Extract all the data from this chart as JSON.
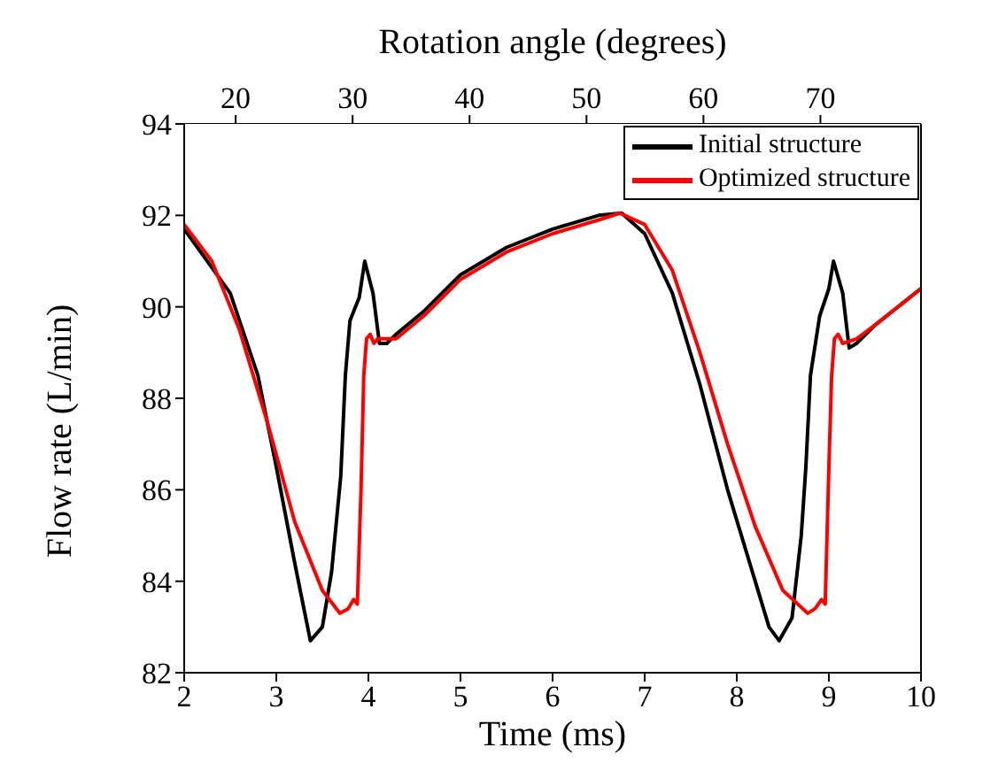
{
  "chart_data": {
    "type": "line",
    "xlabel": "Time (ms)",
    "ylabel": "Flow rate (L/min)",
    "x2label": "Rotation angle (degrees)",
    "xlim": [
      2,
      10
    ],
    "xticks": [
      2,
      3,
      4,
      5,
      6,
      7,
      8,
      9,
      10
    ],
    "ylim": [
      82,
      94
    ],
    "yticks": [
      82,
      84,
      86,
      88,
      90,
      92,
      94
    ],
    "x2lim": [
      15.6,
      78.6
    ],
    "x2ticks": [
      20,
      30,
      40,
      50,
      60,
      70
    ],
    "legend": "top right",
    "line_style": "solid",
    "marker": "none",
    "grid": false,
    "series": [
      {
        "name": "Initial structure",
        "color": "#000000",
        "x": [
          2,
          2.5,
          2.8,
          3.0,
          3.2,
          3.37,
          3.5,
          3.6,
          3.7,
          3.75,
          3.8,
          3.9,
          3.96,
          4.05,
          4.12,
          4.2,
          4.3,
          4.6,
          5,
          5.5,
          6,
          6.5,
          6.75,
          7.0,
          7.3,
          7.6,
          7.9,
          8.2,
          8.35,
          8.46,
          8.6,
          8.7,
          8.75,
          8.8,
          8.9,
          9.0,
          9.05,
          9.15,
          9.22,
          9.3,
          9.5,
          10
        ],
        "values": [
          91.7,
          90.3,
          88.5,
          86.5,
          84.4,
          82.7,
          83.0,
          84.2,
          86.3,
          88.5,
          89.7,
          90.2,
          91.0,
          90.3,
          89.2,
          89.2,
          89.4,
          89.9,
          90.7,
          91.3,
          91.7,
          92.0,
          92.05,
          91.6,
          90.3,
          88.3,
          86.0,
          84.0,
          83.0,
          82.7,
          83.2,
          85.0,
          86.5,
          88.5,
          89.8,
          90.4,
          91.0,
          90.3,
          89.1,
          89.2,
          89.6,
          90.4
        ]
      },
      {
        "name": "Optimized structure",
        "color": "#ff0000",
        "x": [
          2,
          2.3,
          2.6,
          2.9,
          3.2,
          3.5,
          3.69,
          3.78,
          3.84,
          3.88,
          3.92,
          3.95,
          3.98,
          4.02,
          4.06,
          4.1,
          4.3,
          4.6,
          5,
          5.5,
          6,
          6.5,
          6.73,
          7.0,
          7.3,
          7.6,
          7.9,
          8.2,
          8.5,
          8.77,
          8.85,
          8.92,
          8.96,
          9.0,
          9.03,
          9.06,
          9.1,
          9.15,
          9.3,
          9.5,
          10
        ],
        "values": [
          91.8,
          91.0,
          89.5,
          87.5,
          85.3,
          83.8,
          83.3,
          83.4,
          83.6,
          83.5,
          86.0,
          88.5,
          89.3,
          89.4,
          89.2,
          89.3,
          89.3,
          89.8,
          90.6,
          91.2,
          91.6,
          91.9,
          92.05,
          91.8,
          90.8,
          89.0,
          87.0,
          85.2,
          83.8,
          83.3,
          83.4,
          83.6,
          83.5,
          86.5,
          88.5,
          89.3,
          89.4,
          89.2,
          89.3,
          89.6,
          90.4
        ]
      }
    ]
  }
}
